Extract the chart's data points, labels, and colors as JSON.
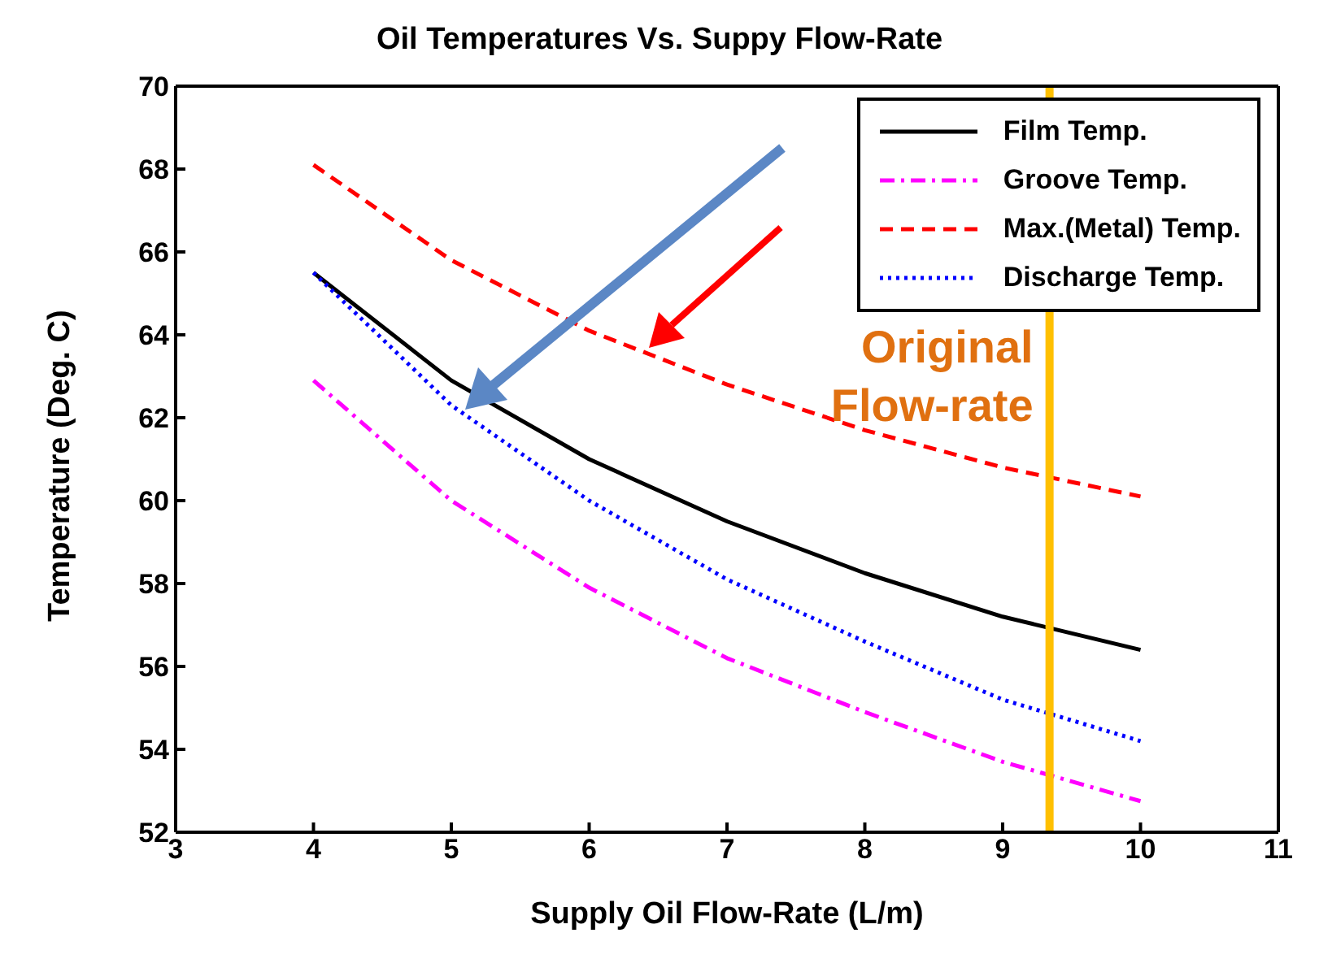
{
  "chart_data": {
    "type": "line",
    "title": "Oil Temperatures Vs. Suppy Flow-Rate",
    "xlabel": "Supply Oil Flow-Rate (L/m)",
    "ylabel": "Temperature (Deg. C)",
    "x": [
      4,
      5,
      6,
      7,
      8,
      9,
      10
    ],
    "series": [
      {
        "name": "Film Temp.",
        "color": "#000000",
        "line_style": "solid",
        "values": [
          65.5,
          62.9,
          61.0,
          59.5,
          58.25,
          57.2,
          56.4
        ]
      },
      {
        "name": "Groove Temp.",
        "color": "#ff00ff",
        "line_style": "dashdot",
        "values": [
          62.9,
          60.0,
          57.9,
          56.2,
          54.9,
          53.7,
          52.75
        ]
      },
      {
        "name": "Max.(Metal) Temp.",
        "color": "#ff0000",
        "line_style": "dashed",
        "values": [
          68.1,
          65.8,
          64.1,
          62.8,
          61.7,
          60.8,
          60.1
        ]
      },
      {
        "name": "Discharge Temp.",
        "color": "#0000ff",
        "line_style": "dotted",
        "values": [
          65.5,
          62.3,
          60.0,
          58.1,
          56.6,
          55.2,
          54.2
        ]
      }
    ],
    "xlim": [
      3,
      11
    ],
    "xticks": [
      3,
      4,
      5,
      6,
      7,
      8,
      9,
      10,
      11
    ],
    "ylim": [
      52,
      70
    ],
    "yticks": [
      52,
      54,
      56,
      58,
      60,
      62,
      64,
      66,
      68,
      70
    ],
    "legend": "top right",
    "marker": "none",
    "ref_lines": [
      {
        "axis": "x",
        "value": 9.34,
        "label": "Original Flow-rate",
        "color": "#ffc000"
      }
    ]
  }
}
